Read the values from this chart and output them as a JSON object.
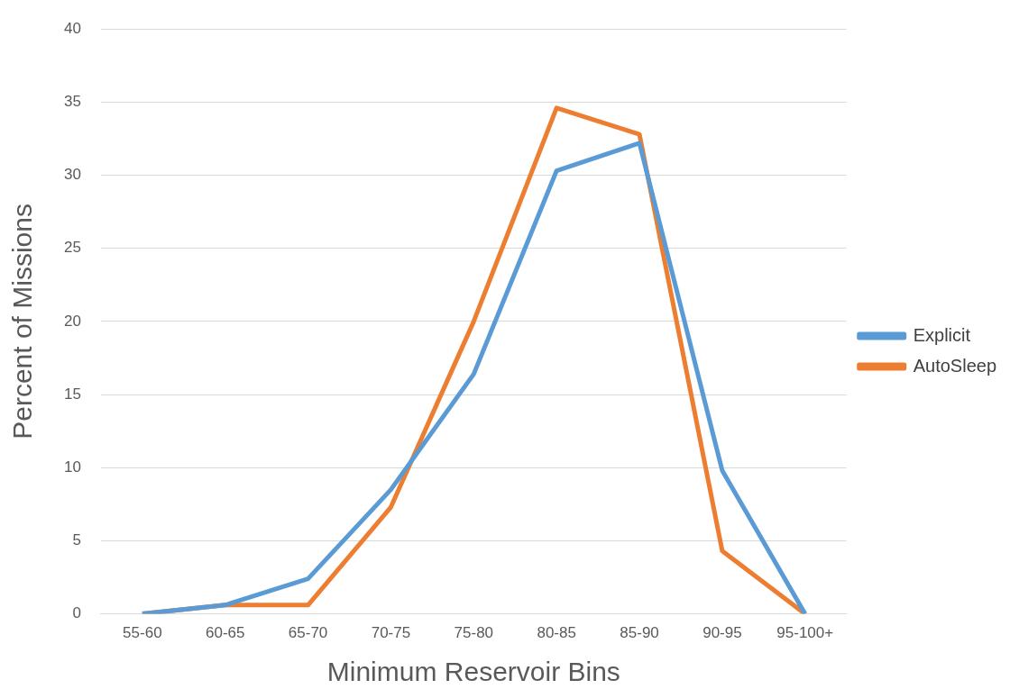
{
  "chart_data": {
    "type": "line",
    "xlabel": "Minimum Reservoir Bins",
    "ylabel": "Percent of Missions",
    "categories": [
      "55-60",
      "60-65",
      "65-70",
      "70-75",
      "75-80",
      "80-85",
      "85-90",
      "90-95",
      "95-100+"
    ],
    "series": [
      {
        "name": "Explicit",
        "color": "#5b9bd5",
        "values": [
          0,
          0.6,
          2.4,
          8.5,
          16.4,
          30.3,
          32.2,
          9.8,
          0
        ]
      },
      {
        "name": "AutoSleep",
        "color": "#ed7d31",
        "values": [
          0,
          0.6,
          0.6,
          7.3,
          20,
          34.6,
          32.8,
          4.3,
          0
        ]
      }
    ],
    "ylim": [
      0,
      40
    ],
    "yticks": [
      0,
      5,
      10,
      15,
      20,
      25,
      30,
      35,
      40
    ],
    "grid": "y",
    "legend": "right",
    "marker": "none",
    "line_style": "solid"
  }
}
